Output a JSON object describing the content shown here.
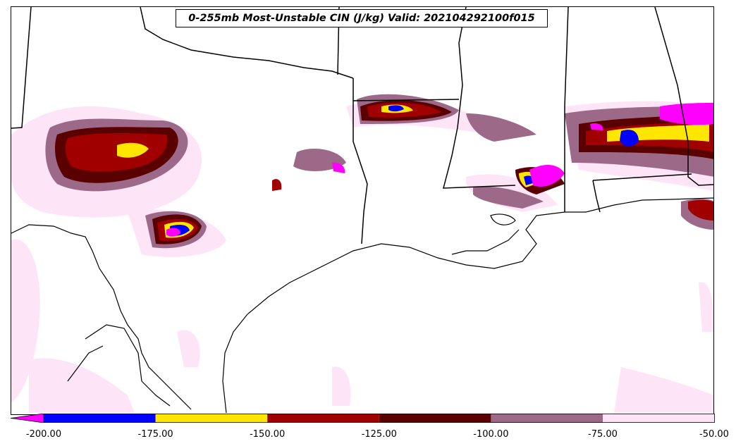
{
  "title": "0-255mb Most-Unstable CIN (J/kg) Valid: 202104292100f015",
  "colorbar": {
    "ticks": [
      "-200.00",
      "-175.00",
      "-150.00",
      "-125.00",
      "-100.00",
      "-75.00",
      "-50.00"
    ],
    "bins": [
      {
        "range": "< -200",
        "color": "#ff00ff"
      },
      {
        "range": "-200 to -175",
        "color": "#0000ff"
      },
      {
        "range": "-175 to -150",
        "color": "#ffe600"
      },
      {
        "range": "-150 to -125",
        "color": "#a00000"
      },
      {
        "range": "-125 to -100",
        "color": "#5a0000"
      },
      {
        "range": "-100 to -75",
        "color": "#9c6a88"
      },
      {
        "range": "-75 to -50",
        "color": "#fde4f7"
      }
    ]
  }
}
